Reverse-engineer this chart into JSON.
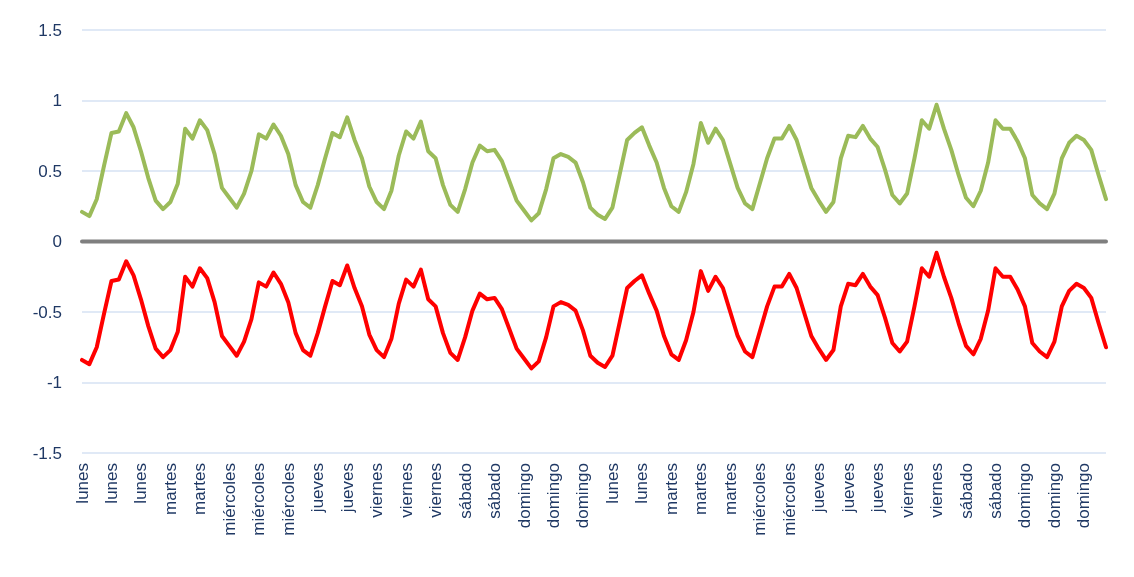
{
  "chart_data": {
    "type": "line",
    "categories": [
      "lunes",
      null,
      null,
      null,
      "lunes",
      null,
      null,
      null,
      "lunes",
      null,
      null,
      null,
      "martes",
      null,
      null,
      null,
      "martes",
      null,
      null,
      null,
      "miércoles",
      null,
      null,
      null,
      "miércoles",
      null,
      null,
      null,
      "miércoles",
      null,
      null,
      null,
      "jueves",
      null,
      null,
      null,
      "jueves",
      null,
      null,
      null,
      "viernes",
      null,
      null,
      null,
      "viernes",
      null,
      null,
      null,
      "viernes",
      null,
      null,
      null,
      "sábado",
      null,
      null,
      null,
      "sábado",
      null,
      null,
      null,
      "domingo",
      null,
      null,
      null,
      "domingo",
      null,
      null,
      null,
      "domingo",
      null,
      null,
      null,
      "lunes",
      null,
      null,
      null,
      "lunes",
      null,
      null,
      null,
      "martes",
      null,
      null,
      null,
      "martes",
      null,
      null,
      null,
      "martes",
      null,
      null,
      null,
      "miércoles",
      null,
      null,
      null,
      "miércoles",
      null,
      null,
      null,
      "jueves",
      null,
      null,
      null,
      "jueves",
      null,
      null,
      null,
      "jueves",
      null,
      null,
      null,
      "viernes",
      null,
      null,
      null,
      "viernes",
      null,
      null,
      null,
      "sábado",
      null,
      null,
      null,
      "sábado",
      null,
      null,
      null,
      "domingo",
      null,
      null,
      null,
      "domingo",
      null,
      null,
      null,
      "domingo",
      null,
      null,
      null
    ],
    "series": [
      {
        "color": "#9bbb59",
        "values": [
          0.21,
          0.18,
          0.3,
          0.54,
          0.77,
          0.78,
          0.91,
          0.81,
          0.64,
          0.45,
          0.29,
          0.23,
          0.28,
          0.41,
          0.8,
          0.73,
          0.86,
          0.79,
          0.62,
          0.38,
          0.31,
          0.24,
          0.34,
          0.5,
          0.76,
          0.73,
          0.83,
          0.75,
          0.62,
          0.4,
          0.28,
          0.24,
          0.4,
          0.59,
          0.77,
          0.74,
          0.88,
          0.72,
          0.59,
          0.39,
          0.28,
          0.23,
          0.36,
          0.61,
          0.78,
          0.73,
          0.85,
          0.64,
          0.59,
          0.4,
          0.26,
          0.21,
          0.37,
          0.56,
          0.68,
          0.64,
          0.65,
          0.57,
          0.43,
          0.29,
          0.22,
          0.15,
          0.2,
          0.37,
          0.59,
          0.62,
          0.6,
          0.56,
          0.42,
          0.24,
          0.19,
          0.16,
          0.24,
          0.48,
          0.72,
          0.77,
          0.81,
          0.68,
          0.56,
          0.38,
          0.25,
          0.21,
          0.35,
          0.55,
          0.84,
          0.7,
          0.8,
          0.72,
          0.55,
          0.38,
          0.27,
          0.23,
          0.41,
          0.59,
          0.73,
          0.73,
          0.82,
          0.72,
          0.55,
          0.38,
          0.29,
          0.21,
          0.28,
          0.59,
          0.75,
          0.74,
          0.82,
          0.73,
          0.67,
          0.51,
          0.33,
          0.27,
          0.34,
          0.59,
          0.86,
          0.8,
          0.97,
          0.8,
          0.65,
          0.47,
          0.31,
          0.25,
          0.36,
          0.56,
          0.86,
          0.8,
          0.8,
          0.71,
          0.59,
          0.33,
          0.27,
          0.23,
          0.34,
          0.59,
          0.7,
          0.75,
          0.72,
          0.65,
          0.47,
          0.3
        ]
      },
      {
        "color": "#7f7f7f",
        "values": [
          0,
          0,
          0,
          0,
          0,
          0,
          0,
          0,
          0,
          0,
          0,
          0,
          0,
          0,
          0,
          0,
          0,
          0,
          0,
          0,
          0,
          0,
          0,
          0,
          0,
          0,
          0,
          0,
          0,
          0,
          0,
          0,
          0,
          0,
          0,
          0,
          0,
          0,
          0,
          0,
          0,
          0,
          0,
          0,
          0,
          0,
          0,
          0,
          0,
          0,
          0,
          0,
          0,
          0,
          0,
          0,
          0,
          0,
          0,
          0,
          0,
          0,
          0,
          0,
          0,
          0,
          0,
          0,
          0,
          0,
          0,
          0,
          0,
          0,
          0,
          0,
          0,
          0,
          0,
          0,
          0,
          0,
          0,
          0,
          0,
          0,
          0,
          0,
          0,
          0,
          0,
          0,
          0,
          0,
          0,
          0,
          0,
          0,
          0,
          0,
          0,
          0,
          0,
          0,
          0,
          0,
          0,
          0,
          0,
          0,
          0,
          0,
          0,
          0,
          0,
          0,
          0,
          0,
          0,
          0,
          0,
          0,
          0,
          0,
          0,
          0,
          0,
          0,
          0,
          0,
          0,
          0,
          0,
          0,
          0,
          0,
          0,
          0,
          0,
          0
        ]
      },
      {
        "color": "#ff0000",
        "values": [
          -0.84,
          -0.87,
          -0.75,
          -0.51,
          -0.28,
          -0.27,
          -0.14,
          -0.24,
          -0.41,
          -0.6,
          -0.76,
          -0.82,
          -0.77,
          -0.64,
          -0.25,
          -0.32,
          -0.19,
          -0.26,
          -0.43,
          -0.67,
          -0.74,
          -0.81,
          -0.71,
          -0.55,
          -0.29,
          -0.32,
          -0.22,
          -0.3,
          -0.43,
          -0.65,
          -0.77,
          -0.81,
          -0.65,
          -0.46,
          -0.28,
          -0.31,
          -0.17,
          -0.33,
          -0.46,
          -0.66,
          -0.77,
          -0.82,
          -0.69,
          -0.44,
          -0.27,
          -0.32,
          -0.2,
          -0.41,
          -0.46,
          -0.65,
          -0.79,
          -0.84,
          -0.68,
          -0.49,
          -0.37,
          -0.41,
          -0.4,
          -0.48,
          -0.62,
          -0.76,
          -0.83,
          -0.9,
          -0.85,
          -0.68,
          -0.46,
          -0.43,
          -0.45,
          -0.49,
          -0.63,
          -0.81,
          -0.86,
          -0.89,
          -0.81,
          -0.57,
          -0.33,
          -0.28,
          -0.24,
          -0.37,
          -0.49,
          -0.67,
          -0.8,
          -0.84,
          -0.7,
          -0.5,
          -0.21,
          -0.35,
          -0.25,
          -0.33,
          -0.5,
          -0.67,
          -0.78,
          -0.82,
          -0.64,
          -0.46,
          -0.32,
          -0.32,
          -0.23,
          -0.33,
          -0.5,
          -0.67,
          -0.76,
          -0.84,
          -0.77,
          -0.46,
          -0.3,
          -0.31,
          -0.23,
          -0.32,
          -0.38,
          -0.54,
          -0.72,
          -0.78,
          -0.71,
          -0.46,
          -0.19,
          -0.25,
          -0.08,
          -0.25,
          -0.4,
          -0.58,
          -0.74,
          -0.8,
          -0.69,
          -0.49,
          -0.19,
          -0.25,
          -0.25,
          -0.34,
          -0.46,
          -0.72,
          -0.78,
          -0.82,
          -0.71,
          -0.46,
          -0.35,
          -0.3,
          -0.33,
          -0.4,
          -0.58,
          -0.75
        ]
      }
    ],
    "ylim": [
      -1.5,
      1.5
    ],
    "yticks": [
      -1.5,
      -1,
      -0.5,
      0,
      0.5,
      1,
      1.5
    ],
    "grid": "y",
    "marker": "none",
    "line_style": "solid"
  }
}
